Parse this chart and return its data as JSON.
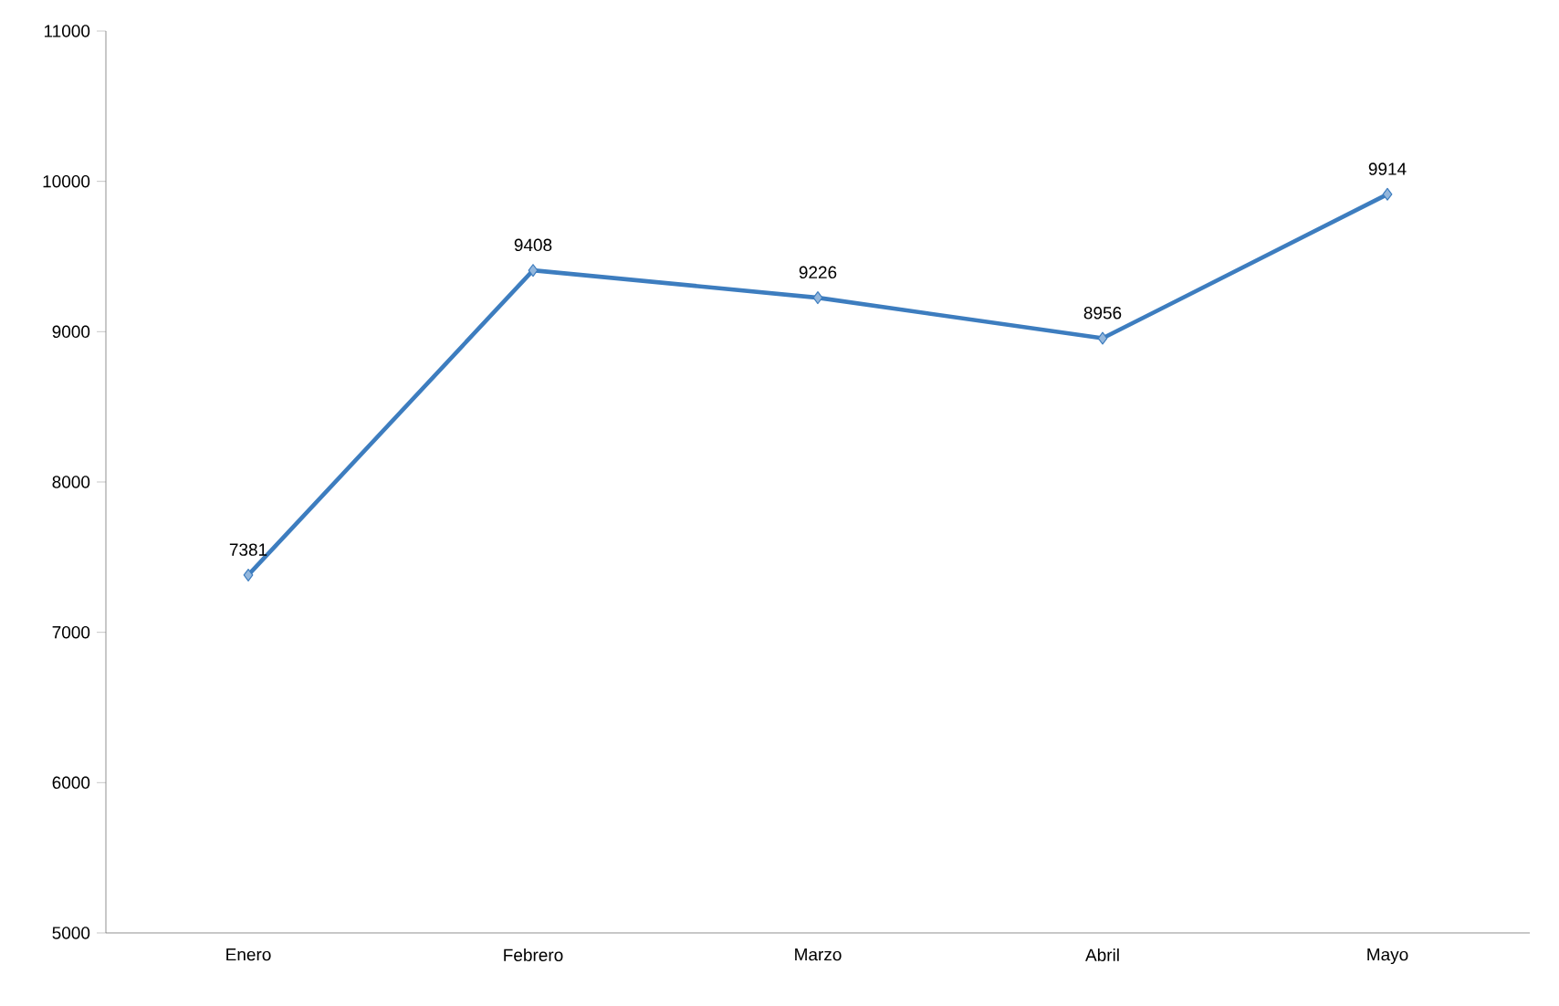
{
  "chart_data": {
    "type": "line",
    "categories": [
      "Enero",
      "Febrero",
      "Marzo",
      "Abril",
      "Mayo"
    ],
    "series": [
      {
        "color": "#3d7dbf",
        "values": [
          7381,
          9408,
          9226,
          8956,
          9914
        ]
      }
    ],
    "ylim": [
      5000,
      11000
    ],
    "yticks": [
      5000,
      6000,
      7000,
      8000,
      9000,
      10000,
      11000
    ],
    "data_labels": true,
    "marker": "diamond",
    "line_style": "solid",
    "grid": false
  }
}
